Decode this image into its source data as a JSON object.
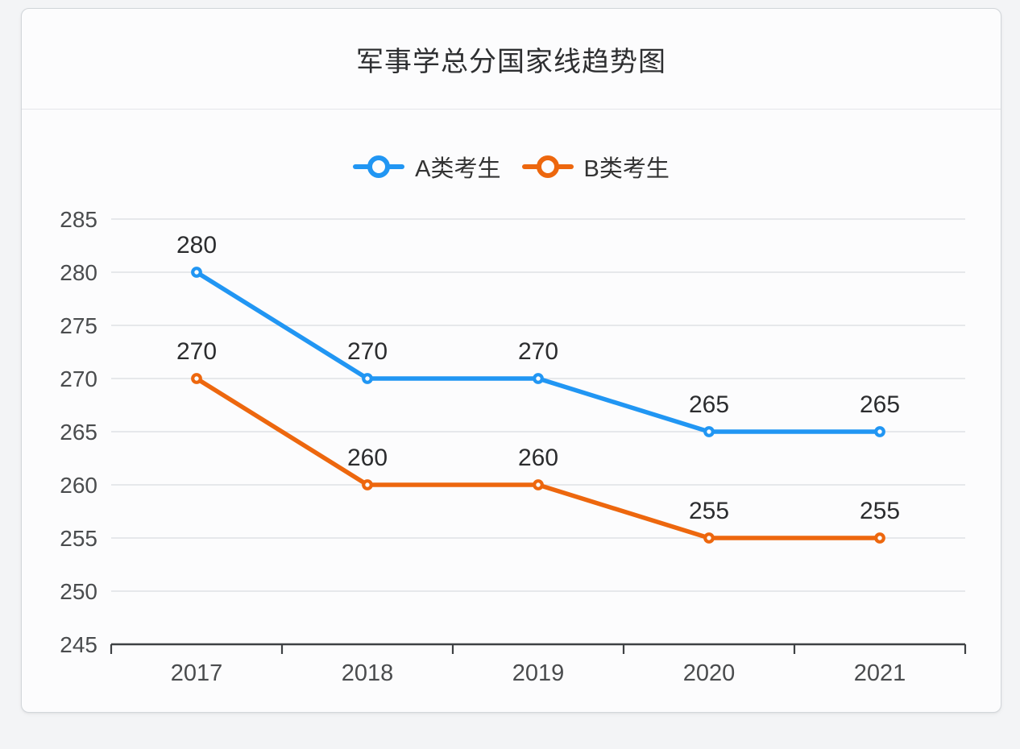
{
  "chart_data": {
    "type": "line",
    "title": "军事学总分国家线趋势图",
    "categories": [
      "2017",
      "2018",
      "2019",
      "2020",
      "2021"
    ],
    "series": [
      {
        "name": "A类考生",
        "color": "#2196f3",
        "values": [
          280,
          270,
          270,
          265,
          265
        ]
      },
      {
        "name": "B类考生",
        "color": "#ed670e",
        "values": [
          270,
          260,
          260,
          255,
          255
        ]
      }
    ],
    "ylim": [
      245,
      285
    ],
    "ytick_step": 5,
    "xlabel": "",
    "ylabel": "",
    "grid": true,
    "legend_position": "top-center",
    "data_labels": true,
    "marker": "hollow-circle",
    "colors": {
      "page_bg": "#f3f4f6",
      "card_bg": "#fcfcfd",
      "card_border": "#d2d6da",
      "grid": "#dfe1e5",
      "axis": "#3e4144",
      "tick_label": "#4a4c4e",
      "data_label": "#2b2c2e",
      "title": "#2e2f31",
      "legend_text": "#333333"
    }
  }
}
